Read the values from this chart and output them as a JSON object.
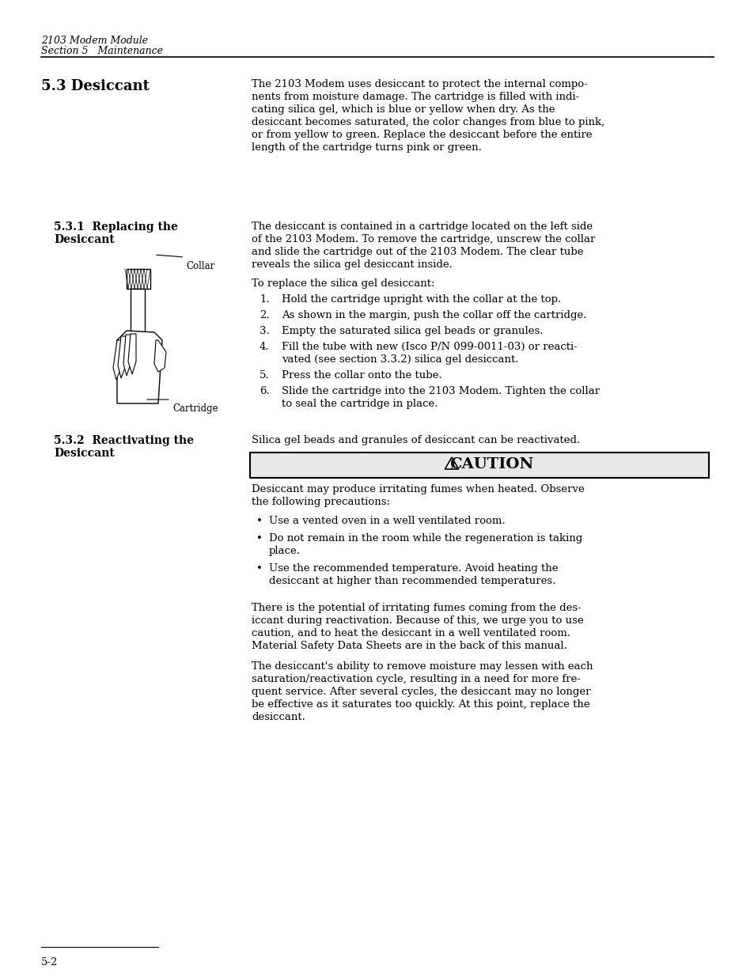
{
  "page_header_line1": "2103 Modem Module",
  "page_header_line2": "Section 5   Maintenance",
  "page_footer": "5-2",
  "section_title": "5.3 Desiccant",
  "section_text": "The 2103 Modem uses desiccant to protect the internal components from moisture damage. The cartridge is filled with indicating silica gel, which is blue or yellow when dry. As the desiccant becomes saturated, the color changes from blue to pink, or from yellow to green. Replace the desiccant before the entire length of the cartridge turns pink or green.",
  "subsection1_title_line1": "5.3.1  Replacing the",
  "subsection1_title_line2": "Desiccant",
  "subsection1_intro": "The desiccant is contained in a cartridge located on the left side of the 2103 Modem. To remove the cartridge, unscrew the collar and slide the cartridge out of the 2103 Modem. The clear tube reveals the silica gel desiccant inside.",
  "subsection1_list_header": "To replace the silica gel desiccant:",
  "subsection1_steps": [
    "Hold the cartridge upright with the collar at the top.",
    "As shown in the margin, push the collar off the cartridge.",
    "Empty the saturated silica gel beads or granules.",
    "Fill the tube with new (Isco P/N 099-0011-03) or reactivated (see section 3.3.2) silica gel desiccant.",
    "Press the collar onto the tube.",
    "Slide the cartridge into the 2103 Modem. Tighten the collar to seal the cartridge in place."
  ],
  "collar_label": "Collar",
  "cartridge_label": "Cartridge",
  "subsection2_title_line1": "5.3.2  Reactivating the",
  "subsection2_title_line2": "Desiccant",
  "subsection2_intro": "Silica gel beads and granules of desiccant can be reactivated.",
  "caution_title": "CAUTION",
  "caution_intro": "Desiccant may produce irritating fumes when heated. Observe the following precautions:",
  "caution_bullets": [
    "Use a vented oven in a well ventilated room.",
    "Do not remain in the room while the regeneration is taking place.",
    "Use the recommended temperature. Avoid heating the desiccant at higher than recommended temperatures."
  ],
  "para_reactivation1": "There is the potential of irritating fumes coming from the desiccant during reactivation. Because of this, we urge you to use caution, and to heat the desiccant in a well ventilated room. Material Safety Data Sheets are in the back of this manual.",
  "para_reactivation2": "The desiccant's ability to remove moisture may lessen with each saturation/reactivation cycle, resulting in a need for more frequent service. After several cycles, the desiccant may no longer be effective as it saturates too quickly. At this point, replace the desiccant.",
  "bg_color": "#ffffff",
  "text_color": "#000000",
  "header_color": "#000000",
  "caution_box_bg": "#f0f0f0",
  "line_color": "#000000"
}
